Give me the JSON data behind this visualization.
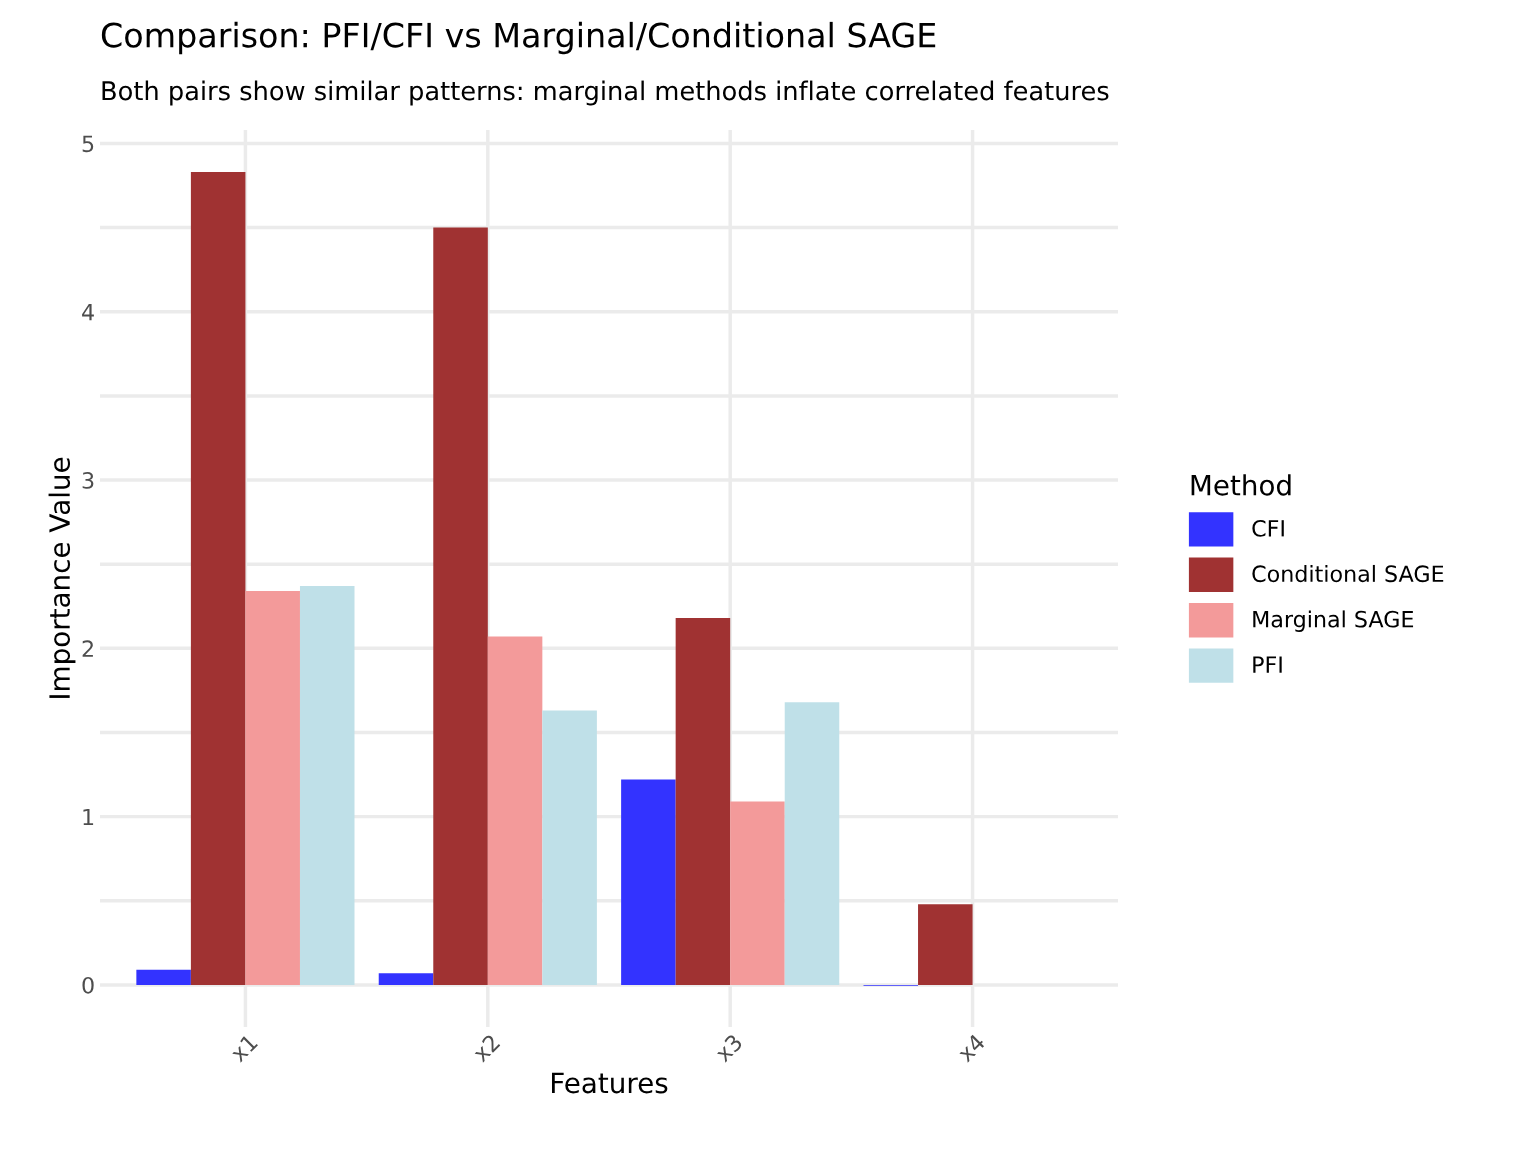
{
  "chart_data": {
    "type": "bar",
    "title": "Comparison: PFI/CFI vs Marginal/Conditional SAGE",
    "subtitle": "Both pairs show similar patterns: marginal methods inflate correlated features",
    "xlabel": "Features",
    "ylabel": "Importance Value",
    "legend_title": "Method",
    "categories": [
      "x1",
      "x2",
      "x3",
      "x4"
    ],
    "series": [
      {
        "name": "CFI",
        "color": "#3333ff",
        "values": [
          0.09,
          0.07,
          1.22,
          -0.005
        ]
      },
      {
        "name": "Conditional SAGE",
        "color": "#a03232",
        "values": [
          4.83,
          4.5,
          2.18,
          0.48
        ]
      },
      {
        "name": "Marginal SAGE",
        "color": "#f39a9a",
        "values": [
          2.34,
          2.07,
          1.09,
          0
        ]
      },
      {
        "name": "PFI",
        "color": "#bfe0e8",
        "values": [
          2.37,
          1.63,
          1.68,
          0
        ]
      }
    ],
    "ylim": [
      -0.25,
      5.08
    ],
    "yticks": [
      0,
      {
        "value": 0.5,
        "label": null
      },
      1,
      {
        "value": 1.5,
        "label": null
      },
      2,
      {
        "value": 2.5,
        "label": null
      },
      3,
      {
        "value": 3.5,
        "label": null
      },
      4,
      {
        "value": 4.5,
        "label": null
      },
      5
    ],
    "grid": true,
    "legend": "right"
  }
}
